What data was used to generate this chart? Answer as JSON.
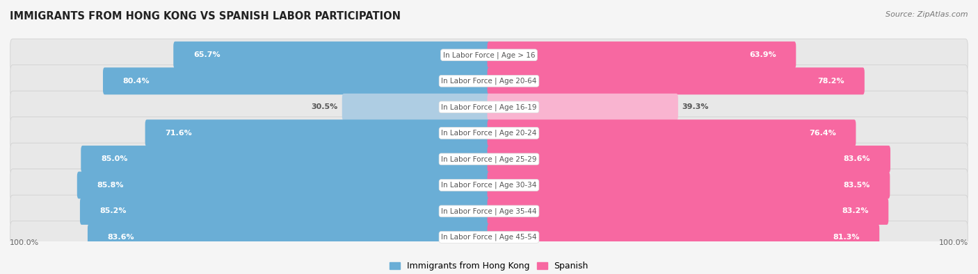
{
  "title": "IMMIGRANTS FROM HONG KONG VS SPANISH LABOR PARTICIPATION",
  "source": "Source: ZipAtlas.com",
  "categories": [
    "In Labor Force | Age > 16",
    "In Labor Force | Age 20-64",
    "In Labor Force | Age 16-19",
    "In Labor Force | Age 20-24",
    "In Labor Force | Age 25-29",
    "In Labor Force | Age 30-34",
    "In Labor Force | Age 35-44",
    "In Labor Force | Age 45-54"
  ],
  "hk_values": [
    65.7,
    80.4,
    30.5,
    71.6,
    85.0,
    85.8,
    85.2,
    83.6
  ],
  "sp_values": [
    63.9,
    78.2,
    39.3,
    76.4,
    83.6,
    83.5,
    83.2,
    81.3
  ],
  "hk_color": "#6aaed6",
  "hk_color_light": "#aecde3",
  "sp_color": "#f768a1",
  "sp_color_light": "#f9b4d0",
  "row_bg": "#e8e8e8",
  "bg_color": "#f5f5f5",
  "label_white": "#ffffff",
  "label_dark": "#555555",
  "center_label_color": "#555555",
  "max_val": 100.0,
  "legend_hk": "Immigrants from Hong Kong",
  "legend_sp": "Spanish"
}
